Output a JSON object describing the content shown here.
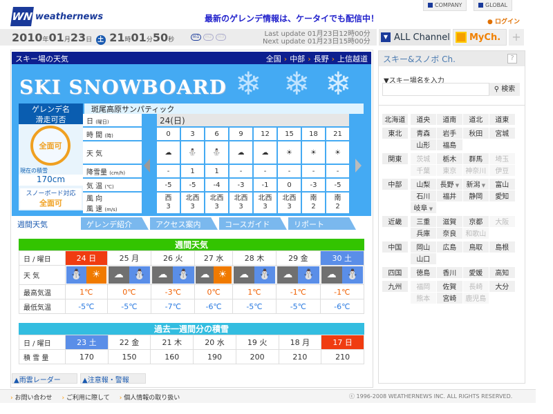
{
  "header": {
    "logo_mark": "WN",
    "logo_text": "weathernews",
    "promo": "最新のゲレンデ情報は、ケータイでも配信中！",
    "company": "COMPANY",
    "global": "GLOBAL",
    "login": "ログイン"
  },
  "datebar": {
    "year": "2010",
    "year_u": "年",
    "month": "01",
    "month_u": "月",
    "day": "23",
    "day_u": "日",
    "weekday": "土",
    "hour": "21",
    "hour_u": "時",
    "min": "01",
    "min_u": "分",
    "sec": "50",
    "sec_u": "秒",
    "m1": "m1",
    "m2": "m2",
    "m3": "m3",
    "last_update": "Last update  01月23日12時00分",
    "next_update": "Next update  01月23日15時00分",
    "all_channel": "ALL Channel",
    "mych": "MyCh.",
    "plus": "+"
  },
  "main": {
    "title": "スキー場の天気",
    "breadcrumb": [
      "全国",
      "中部",
      "長野",
      "上信越道"
    ],
    "banner": "SKI SNOWBOARD",
    "gelande_label": "ゲレンデ名",
    "gelande_name": "斑尾高原サンパティック",
    "kaihi_label": "滑走可否",
    "kaihi_value": "全面可",
    "snow_label": "現在の積雪",
    "snow_value": "170cm",
    "sb_label": "スノーボード対応",
    "sb_value": "全面可"
  },
  "hourly": {
    "date_label": "日",
    "date_unit": "(曜日)",
    "date": "24(日)",
    "time_label": "時 間",
    "time_unit": "(時)",
    "weather_label": "天 気",
    "snow_label": "降雪量",
    "snow_unit": "(cm/h)",
    "temp_label": "気 温",
    "temp_unit": "(℃)",
    "wind_label": "風 向",
    "speed_label": "風 速",
    "speed_unit": "(m/s)",
    "hours": [
      "0",
      "3",
      "6",
      "9",
      "12",
      "15",
      "18",
      "21"
    ],
    "weather": [
      "cloudy",
      "snow",
      "snow",
      "cloudy",
      "cloudy",
      "sunny",
      "sunny",
      "sunny"
    ],
    "snow": [
      "-",
      "1",
      "1",
      "-",
      "-",
      "-",
      "-",
      "-"
    ],
    "temp": [
      "-5",
      "-5",
      "-4",
      "-3",
      "-1",
      "0",
      "-3",
      "-5"
    ],
    "wind_dir": [
      "西",
      "北西",
      "北西",
      "北西",
      "北西",
      "北西",
      "南",
      "南"
    ],
    "wind_speed": [
      "3",
      "3",
      "3",
      "3",
      "3",
      "3",
      "2",
      "2"
    ]
  },
  "tabs": [
    "週間天気",
    "ゲレンデ紹介",
    "アクセス案内",
    "コースガイド",
    "リポート"
  ],
  "weekly": {
    "title": "週間天気",
    "day_label": "日 / 曜日",
    "weather_label": "天 気",
    "max_label": "最高気温",
    "min_label": "最低気温",
    "days": [
      {
        "d": "24 日",
        "c": "red"
      },
      {
        "d": "25 月",
        "c": ""
      },
      {
        "d": "26 火",
        "c": ""
      },
      {
        "d": "27 水",
        "c": ""
      },
      {
        "d": "28 木",
        "c": ""
      },
      {
        "d": "29 金",
        "c": ""
      },
      {
        "d": "30 土",
        "c": "blue"
      }
    ],
    "weather": [
      [
        "snow",
        "sunny"
      ],
      [
        "cloudy",
        "snow"
      ],
      [
        "cloudy",
        "snow"
      ],
      [
        "cloudy",
        "sunny"
      ],
      [
        "cloudy",
        "snow"
      ],
      [
        "cloudy",
        "snow"
      ],
      [
        "cloudy",
        "snow"
      ]
    ],
    "max": [
      "1℃",
      "0℃",
      "-3℃",
      "0℃",
      "1℃",
      "-1℃",
      "-1℃"
    ],
    "min": [
      "-5℃",
      "-5℃",
      "-7℃",
      "-6℃",
      "-5℃",
      "-5℃",
      "-6℃"
    ]
  },
  "past": {
    "title": "過去一週間分の積雪",
    "day_label": "日 / 曜日",
    "amount_label": "積 雪 量",
    "days": [
      {
        "d": "23 土",
        "c": "blue"
      },
      {
        "d": "22 金",
        "c": ""
      },
      {
        "d": "21 木",
        "c": ""
      },
      {
        "d": "20 水",
        "c": ""
      },
      {
        "d": "19 火",
        "c": ""
      },
      {
        "d": "18 月",
        "c": ""
      },
      {
        "d": "17 日",
        "c": "red"
      }
    ],
    "amounts": [
      "170",
      "150",
      "160",
      "190",
      "200",
      "210",
      "210"
    ]
  },
  "bottom_tabs": [
    "雨雲レーダー",
    "注意報・警報"
  ],
  "footer": {
    "links": [
      "お問い合わせ",
      "ご利用に際して",
      "個人情報の取り扱い"
    ],
    "copyright": "ⓒ 1996-2008 WEATHERNEWS INC. ALL RIGHTS RESERVED."
  },
  "sidebar": {
    "title": "スキー&スノボ Ch.",
    "help": "?",
    "search_label": "▼スキー場名を入力",
    "search_value": "",
    "search_button": "検索",
    "regions": [
      {
        "name": "北海道",
        "prefs": [
          {
            "n": "道央",
            "on": true
          },
          {
            "n": "道南",
            "on": true
          },
          {
            "n": "道北",
            "on": true
          },
          {
            "n": "道東",
            "on": true
          }
        ]
      },
      {
        "name": "東北",
        "prefs": [
          {
            "n": "青森",
            "on": true
          },
          {
            "n": "岩手",
            "on": true
          },
          {
            "n": "秋田",
            "on": true
          },
          {
            "n": "宮城",
            "on": true
          },
          {
            "n": "山形",
            "on": true
          },
          {
            "n": "福島",
            "on": true
          }
        ]
      },
      {
        "name": "関東",
        "prefs": [
          {
            "n": "茨城",
            "on": false
          },
          {
            "n": "栃木",
            "on": true
          },
          {
            "n": "群馬",
            "on": true
          },
          {
            "n": "埼玉",
            "on": false
          },
          {
            "n": "千葉",
            "on": false
          },
          {
            "n": "東京",
            "on": false
          },
          {
            "n": "神奈川",
            "on": false
          },
          {
            "n": "伊豆",
            "on": false
          }
        ]
      },
      {
        "name": "中部",
        "prefs": [
          {
            "n": "山梨",
            "on": true
          },
          {
            "n": "長野",
            "on": true,
            "dd": true
          },
          {
            "n": "新潟",
            "on": true,
            "dd": true
          },
          {
            "n": "富山",
            "on": true
          },
          {
            "n": "石川",
            "on": true
          },
          {
            "n": "福井",
            "on": true
          },
          {
            "n": "静岡",
            "on": true
          },
          {
            "n": "愛知",
            "on": true
          },
          {
            "n": "岐阜",
            "on": true,
            "dd": true
          }
        ]
      },
      {
        "name": "近畿",
        "prefs": [
          {
            "n": "三重",
            "on": true
          },
          {
            "n": "滋賀",
            "on": true
          },
          {
            "n": "京都",
            "on": true
          },
          {
            "n": "大阪",
            "on": false
          },
          {
            "n": "兵庫",
            "on": true
          },
          {
            "n": "奈良",
            "on": true
          },
          {
            "n": "和歌山",
            "on": false
          }
        ]
      },
      {
        "name": "中国",
        "prefs": [
          {
            "n": "岡山",
            "on": true
          },
          {
            "n": "広島",
            "on": true
          },
          {
            "n": "鳥取",
            "on": true
          },
          {
            "n": "島根",
            "on": true
          },
          {
            "n": "山口",
            "on": true
          }
        ]
      },
      {
        "name": "四国",
        "prefs": [
          {
            "n": "徳島",
            "on": true
          },
          {
            "n": "香川",
            "on": true
          },
          {
            "n": "愛媛",
            "on": true
          },
          {
            "n": "高知",
            "on": true
          }
        ]
      },
      {
        "name": "九州",
        "prefs": [
          {
            "n": "福岡",
            "on": false
          },
          {
            "n": "佐賀",
            "on": true
          },
          {
            "n": "長崎",
            "on": false
          },
          {
            "n": "大分",
            "on": true
          },
          {
            "n": "熊本",
            "on": false
          },
          {
            "n": "宮崎",
            "on": true
          },
          {
            "n": "鹿児島",
            "on": false
          }
        ]
      }
    ]
  },
  "colors": {
    "title_bar": "#0d1f8f",
    "banner": "#44aaf3",
    "weekly_header": "#33c400",
    "past_header": "#33bde0",
    "sunday": "#f03c10",
    "saturday": "#5a8ee8",
    "accent": "#f0a020"
  }
}
